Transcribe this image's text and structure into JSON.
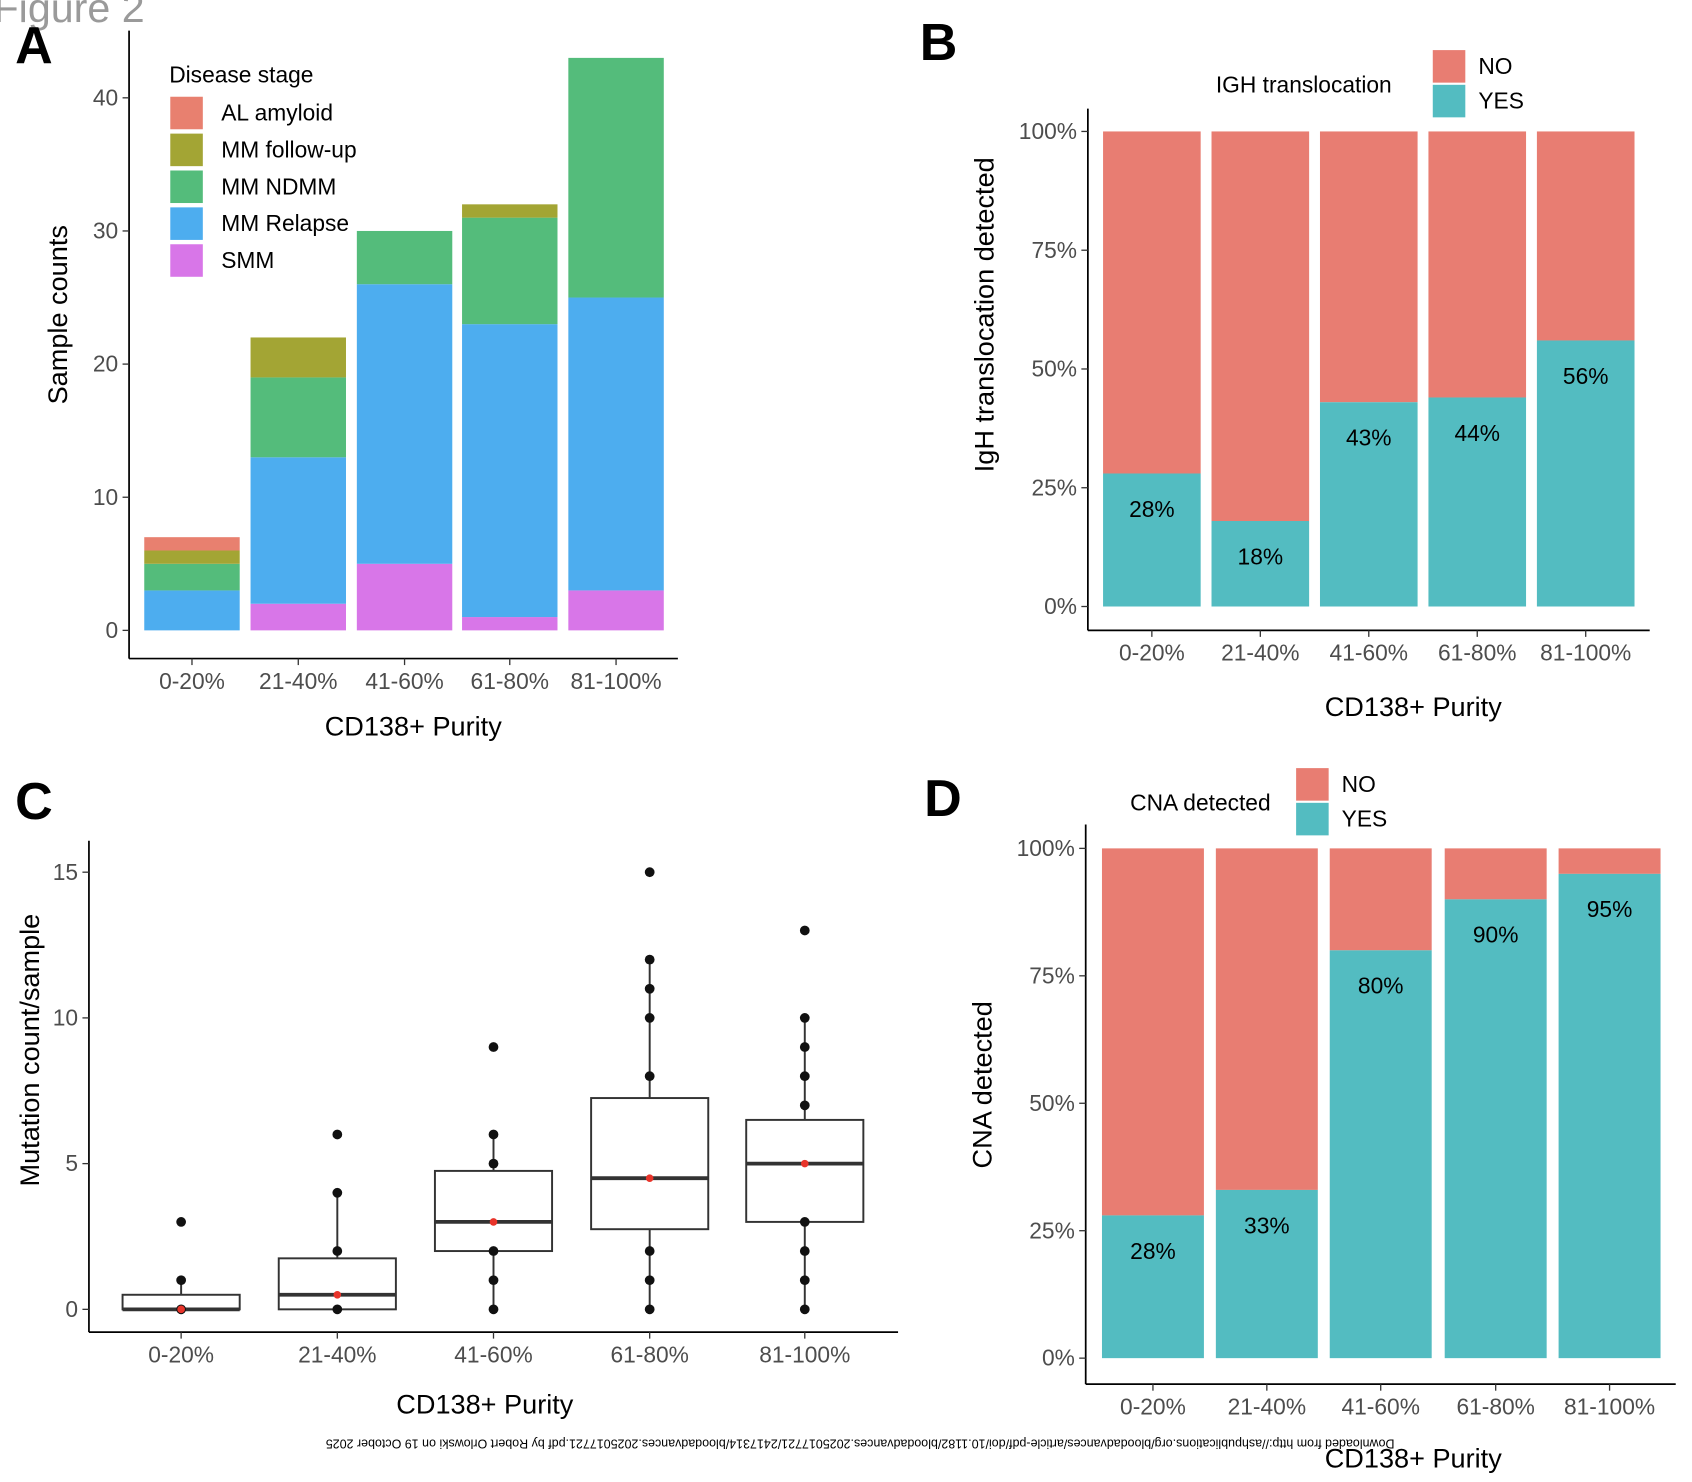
{
  "figure_title": "Figure 2",
  "watermark": "Downloaded from http://ashpublications.org/bloodadvances/article-pdf/doi/10.1182/bloodadvances.2025017721/2417314/bloodadvances.2025017721.pdf by Robert Orlowski on 19 October 2025",
  "chart_data": [
    {
      "panel": "A",
      "type": "bar",
      "stacked": true,
      "xlabel": "CD138+ Purity",
      "ylabel": "Sample counts",
      "ylim": [
        0,
        43
      ],
      "yticks": [
        0,
        10,
        20,
        30,
        40
      ],
      "grid": false,
      "legend_title": "Disease stage",
      "legend_position": "top-left",
      "categories": [
        "0-20%",
        "21-40%",
        "41-60%",
        "61-80%",
        "81-100%"
      ],
      "series": [
        {
          "name": "SMM",
          "color": "#D876E8",
          "values": [
            0,
            2,
            5,
            1,
            3
          ]
        },
        {
          "name": "MM Relapse",
          "color": "#4DADEF",
          "values": [
            3,
            11,
            21,
            22,
            22
          ]
        },
        {
          "name": "MM NDMM",
          "color": "#54BC7B",
          "values": [
            2,
            6,
            4,
            8,
            18
          ]
        },
        {
          "name": "MM follow-up",
          "color": "#A3A534",
          "values": [
            1,
            3,
            0,
            1,
            0
          ]
        },
        {
          "name": "AL amyloid",
          "color": "#E8806F",
          "values": [
            1,
            0,
            0,
            0,
            0
          ]
        }
      ],
      "legend_order": [
        "AL amyloid",
        "MM follow-up",
        "MM NDMM",
        "MM Relapse",
        "SMM"
      ]
    },
    {
      "panel": "B",
      "type": "bar",
      "stacked": true,
      "percent": true,
      "xlabel": "CD138+ Purity",
      "ylabel": "IgH translocation detected",
      "ylim": [
        0,
        100
      ],
      "yticks": [
        "0%",
        "25%",
        "50%",
        "75%",
        "100%"
      ],
      "legend_title": "IGH translocation",
      "legend_position": "top",
      "categories": [
        "0-20%",
        "21-40%",
        "41-60%",
        "61-80%",
        "81-100%"
      ],
      "series": [
        {
          "name": "YES",
          "color": "#53BCC1",
          "values": [
            28,
            18,
            43,
            44,
            56
          ]
        },
        {
          "name": "NO",
          "color": "#E87D72",
          "values": [
            72,
            82,
            57,
            56,
            44
          ]
        }
      ],
      "data_labels": [
        "28%",
        "18%",
        "43%",
        "44%",
        "56%"
      ]
    },
    {
      "panel": "C",
      "type": "box",
      "xlabel": "CD138+ Purity",
      "ylabel": "Mutation count/sample",
      "ylim": [
        -0.5,
        16
      ],
      "yticks": [
        0,
        5,
        10,
        15
      ],
      "categories": [
        "0-20%",
        "21-40%",
        "41-60%",
        "61-80%",
        "81-100%"
      ],
      "boxes": [
        {
          "q1": 0,
          "median": 0,
          "q3": 0.5,
          "whisker_low": 0,
          "whisker_high": 1,
          "mean": 0,
          "points": [
            0,
            1,
            3
          ]
        },
        {
          "q1": 0,
          "median": 0.5,
          "q3": 1.75,
          "whisker_low": 0,
          "whisker_high": 4,
          "mean": 0.5,
          "points": [
            0,
            2,
            4,
            6
          ]
        },
        {
          "q1": 2,
          "median": 3,
          "q3": 4.75,
          "whisker_low": 0,
          "whisker_high": 6,
          "mean": 3,
          "points": [
            0,
            1,
            2,
            5,
            6,
            9
          ]
        },
        {
          "q1": 2.75,
          "median": 4.5,
          "q3": 7.25,
          "whisker_low": 0,
          "whisker_high": 12,
          "mean": 4.5,
          "points": [
            0,
            1,
            2,
            8,
            10,
            11,
            12,
            15
          ]
        },
        {
          "q1": 3,
          "median": 5,
          "q3": 6.5,
          "whisker_low": 0,
          "whisker_high": 10,
          "mean": 5,
          "points": [
            0,
            1,
            2,
            3,
            7,
            8,
            9,
            10,
            13
          ]
        }
      ],
      "mean_color": "#E8342A"
    },
    {
      "panel": "D",
      "type": "bar",
      "stacked": true,
      "percent": true,
      "xlabel": "CD138+ Purity",
      "ylabel": "CNA detected",
      "ylim": [
        0,
        100
      ],
      "yticks": [
        "0%",
        "25%",
        "50%",
        "75%",
        "100%"
      ],
      "legend_title": "CNA detected",
      "legend_position": "top",
      "categories": [
        "0-20%",
        "21-40%",
        "41-60%",
        "61-80%",
        "81-100%"
      ],
      "series": [
        {
          "name": "YES",
          "color": "#53BCC1",
          "values": [
            28,
            33,
            80,
            90,
            95
          ]
        },
        {
          "name": "NO",
          "color": "#E87D72",
          "values": [
            72,
            67,
            20,
            10,
            5
          ]
        }
      ],
      "data_labels": [
        "28%",
        "33%",
        "80%",
        "90%",
        "95%"
      ]
    }
  ]
}
